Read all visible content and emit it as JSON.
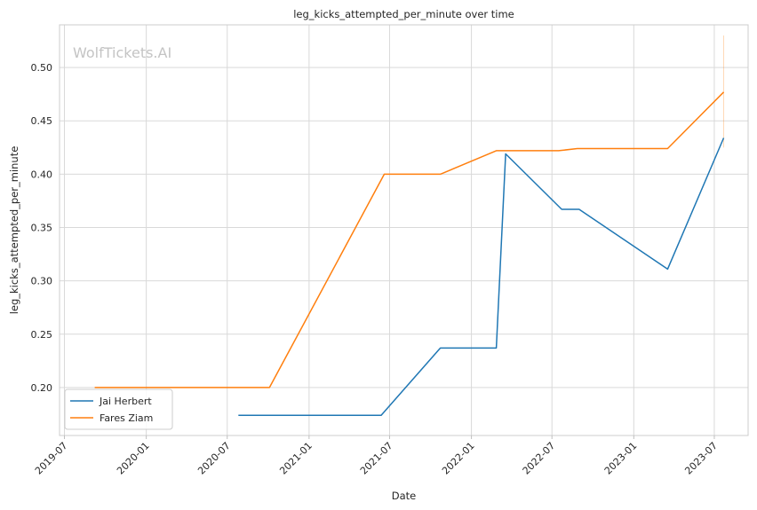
{
  "chart_data": {
    "type": "line",
    "title": "leg_kicks_attempted_per_minute over time",
    "xlabel": "Date",
    "ylabel": "leg_kicks_attempted_per_minute",
    "watermark": "WolfTickets.AI",
    "x_tick_labels": [
      "2019-07",
      "2020-01",
      "2020-07",
      "2021-01",
      "2021-07",
      "2022-01",
      "2022-07",
      "2023-01",
      "2023-07"
    ],
    "y_ticks": [
      0.2,
      0.25,
      0.3,
      0.35,
      0.4,
      0.45,
      0.5
    ],
    "y_tick_labels": [
      "0.20",
      "0.25",
      "0.30",
      "0.35",
      "0.40",
      "0.45",
      "0.50"
    ],
    "xlim": [
      "2019-06-20",
      "2023-09-15"
    ],
    "ylim": [
      0.155,
      0.54
    ],
    "grid": true,
    "legend_position": "lower-left",
    "series": [
      {
        "name": "Jai Herbert",
        "color": "#1f77b4",
        "points": [
          {
            "x": "2020-07-26",
            "y": 0.174
          },
          {
            "x": "2021-06-12",
            "y": 0.174
          },
          {
            "x": "2021-10-23",
            "y": 0.237
          },
          {
            "x": "2022-02-26",
            "y": 0.237
          },
          {
            "x": "2022-03-19",
            "y": 0.419
          },
          {
            "x": "2022-07-23",
            "y": 0.367
          },
          {
            "x": "2022-08-31",
            "y": 0.367
          },
          {
            "x": "2023-03-18",
            "y": 0.311
          },
          {
            "x": "2023-07-22",
            "y": 0.434
          }
        ]
      },
      {
        "name": "Fares Ziam",
        "color": "#ff7f0e",
        "points": [
          {
            "x": "2019-09-07",
            "y": 0.2
          },
          {
            "x": "2020-10-04",
            "y": 0.2
          },
          {
            "x": "2021-06-19",
            "y": 0.4
          },
          {
            "x": "2021-10-23",
            "y": 0.4
          },
          {
            "x": "2022-02-26",
            "y": 0.422
          },
          {
            "x": "2022-07-16",
            "y": 0.422
          },
          {
            "x": "2022-08-27",
            "y": 0.424
          },
          {
            "x": "2023-03-18",
            "y": 0.424
          },
          {
            "x": "2023-07-22",
            "y": 0.477
          }
        ],
        "error_band": {
          "x": "2023-07-22",
          "low": 0.425,
          "high": 0.53
        }
      }
    ]
  }
}
